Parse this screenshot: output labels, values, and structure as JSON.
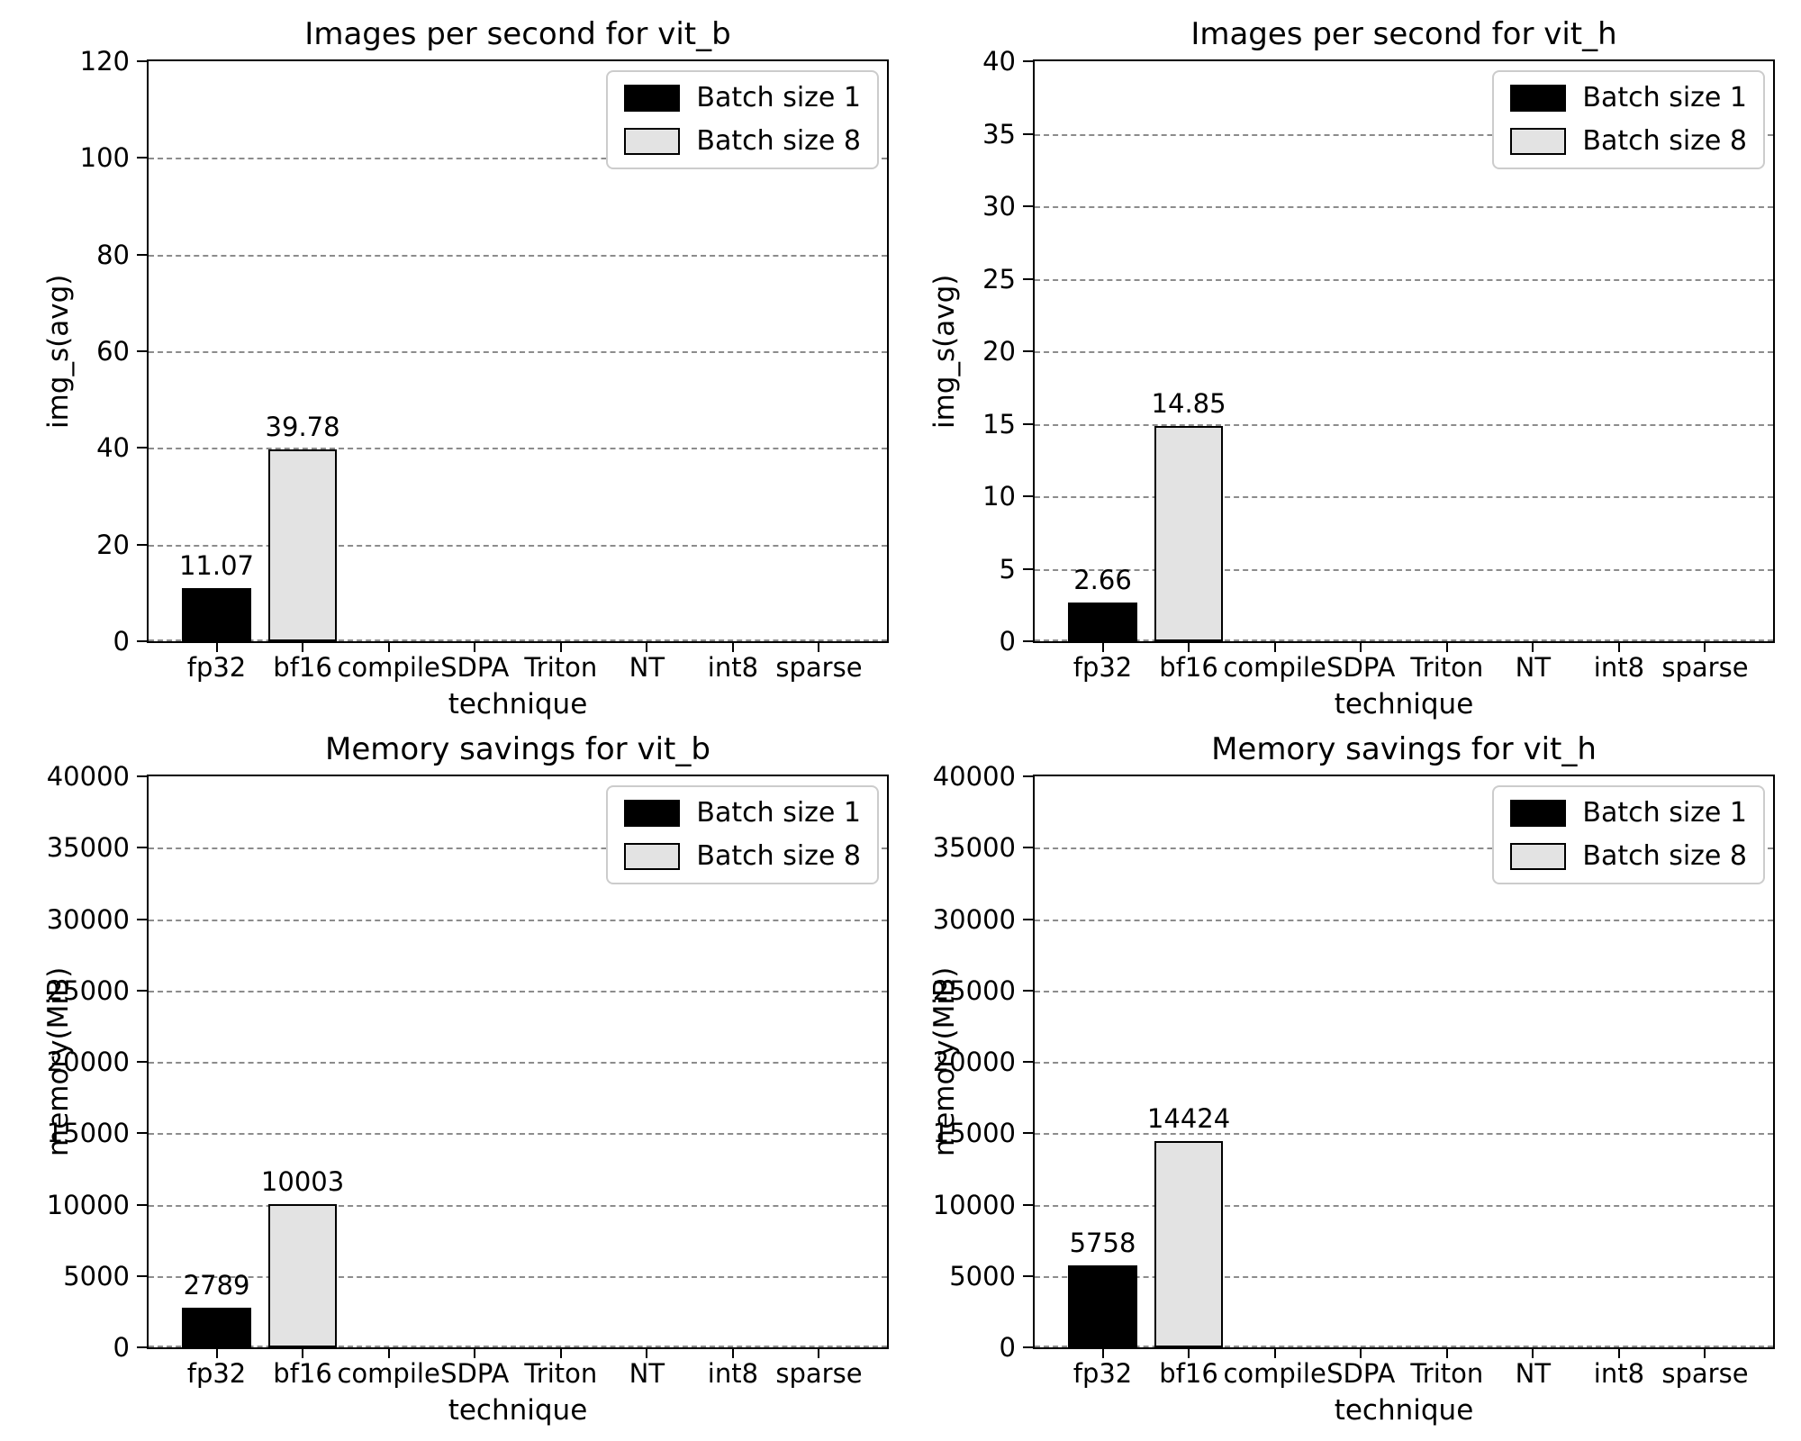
{
  "figure": {
    "background": "#ffffff",
    "text_color": "#000000",
    "grid_color": "#8c8c8c",
    "spine_color": "#000000",
    "bar_edge_color": "#000000"
  },
  "legend": {
    "position": "upper-right",
    "entries": [
      {
        "label": "Batch size 1",
        "color": "#000000"
      },
      {
        "label": "Batch size 8",
        "color": "#e3e3e3"
      }
    ]
  },
  "chart_data": [
    {
      "type": "bar",
      "title": "Images per second for vit_b",
      "xlabel": "technique",
      "ylabel": "img_s(avg)",
      "categories": [
        "fp32",
        "bf16",
        "compile",
        "SDPA",
        "Triton",
        "NT",
        "int8",
        "sparse"
      ],
      "ylim": [
        0,
        120
      ],
      "yticks": [
        0,
        20,
        40,
        60,
        80,
        100,
        120
      ],
      "grid": "dashed-horizontal",
      "legend_position": "upper-right",
      "series": [
        {
          "name": "Batch size 1",
          "color": "#000000",
          "values": [
            11.07,
            null,
            null,
            null,
            null,
            null,
            null,
            null
          ],
          "labels": [
            "11.07",
            null,
            null,
            null,
            null,
            null,
            null,
            null
          ]
        },
        {
          "name": "Batch size 8",
          "color": "#e3e3e3",
          "values": [
            null,
            39.78,
            null,
            null,
            null,
            null,
            null,
            null
          ],
          "labels": [
            null,
            "39.78",
            null,
            null,
            null,
            null,
            null,
            null
          ]
        }
      ]
    },
    {
      "type": "bar",
      "title": "Images per second for vit_h",
      "xlabel": "technique",
      "ylabel": "img_s(avg)",
      "categories": [
        "fp32",
        "bf16",
        "compile",
        "SDPA",
        "Triton",
        "NT",
        "int8",
        "sparse"
      ],
      "ylim": [
        0,
        40
      ],
      "yticks": [
        0,
        5,
        10,
        15,
        20,
        25,
        30,
        35,
        40
      ],
      "grid": "dashed-horizontal",
      "legend_position": "upper-right",
      "series": [
        {
          "name": "Batch size 1",
          "color": "#000000",
          "values": [
            2.66,
            null,
            null,
            null,
            null,
            null,
            null,
            null
          ],
          "labels": [
            "2.66",
            null,
            null,
            null,
            null,
            null,
            null,
            null
          ]
        },
        {
          "name": "Batch size 8",
          "color": "#e3e3e3",
          "values": [
            null,
            14.85,
            null,
            null,
            null,
            null,
            null,
            null
          ],
          "labels": [
            null,
            "14.85",
            null,
            null,
            null,
            null,
            null,
            null
          ]
        }
      ]
    },
    {
      "type": "bar",
      "title": "Memory savings for vit_b",
      "xlabel": "technique",
      "ylabel": "memory(MiB)",
      "categories": [
        "fp32",
        "bf16",
        "compile",
        "SDPA",
        "Triton",
        "NT",
        "int8",
        "sparse"
      ],
      "ylim": [
        0,
        40000
      ],
      "yticks": [
        0,
        5000,
        10000,
        15000,
        20000,
        25000,
        30000,
        35000,
        40000
      ],
      "grid": "dashed-horizontal",
      "legend_position": "upper-right",
      "series": [
        {
          "name": "Batch size 1",
          "color": "#000000",
          "values": [
            2789,
            null,
            null,
            null,
            null,
            null,
            null,
            null
          ],
          "labels": [
            "2789",
            null,
            null,
            null,
            null,
            null,
            null,
            null
          ]
        },
        {
          "name": "Batch size 8",
          "color": "#e3e3e3",
          "values": [
            null,
            10003,
            null,
            null,
            null,
            null,
            null,
            null
          ],
          "labels": [
            null,
            "10003",
            null,
            null,
            null,
            null,
            null,
            null
          ]
        }
      ]
    },
    {
      "type": "bar",
      "title": "Memory savings for vit_h",
      "xlabel": "technique",
      "ylabel": "memory(MiB)",
      "categories": [
        "fp32",
        "bf16",
        "compile",
        "SDPA",
        "Triton",
        "NT",
        "int8",
        "sparse"
      ],
      "ylim": [
        0,
        40000
      ],
      "yticks": [
        0,
        5000,
        10000,
        15000,
        20000,
        25000,
        30000,
        35000,
        40000
      ],
      "grid": "dashed-horizontal",
      "legend_position": "upper-right",
      "series": [
        {
          "name": "Batch size 1",
          "color": "#000000",
          "values": [
            5758,
            null,
            null,
            null,
            null,
            null,
            null,
            null
          ],
          "labels": [
            "5758",
            null,
            null,
            null,
            null,
            null,
            null,
            null
          ]
        },
        {
          "name": "Batch size 8",
          "color": "#e3e3e3",
          "values": [
            null,
            14424,
            null,
            null,
            null,
            null,
            null,
            null
          ],
          "labels": [
            null,
            "14424",
            null,
            null,
            null,
            null,
            null,
            null
          ]
        }
      ]
    }
  ]
}
